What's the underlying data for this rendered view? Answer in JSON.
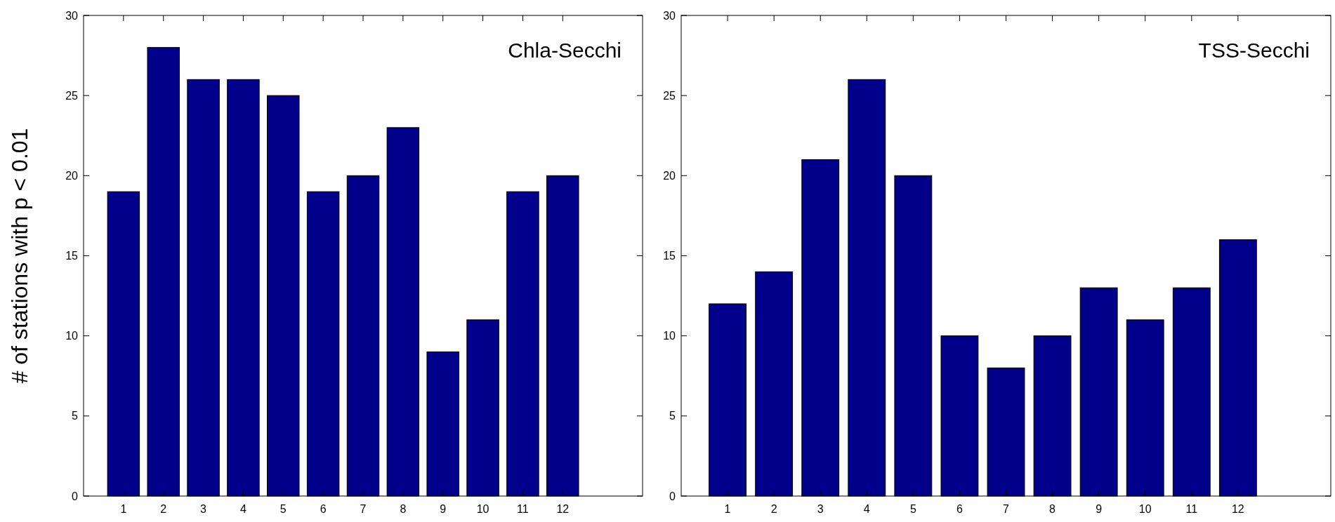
{
  "chart_data": [
    {
      "type": "bar",
      "title": "Chla-Secchi",
      "ylabel": "# of stations with p < 0.01",
      "x": [
        1,
        2,
        3,
        4,
        5,
        6,
        7,
        8,
        9,
        10,
        11,
        12
      ],
      "values": [
        19,
        28,
        26,
        26,
        25,
        19,
        20,
        23,
        9,
        11,
        19,
        20
      ],
      "color": "#00008b",
      "xlim": [
        0,
        14
      ],
      "xticks": [
        1,
        2,
        3,
        4,
        5,
        6,
        7,
        8,
        9,
        10,
        11,
        12
      ],
      "ylim": [
        0,
        30
      ],
      "yticks": [
        0,
        5,
        10,
        15,
        20,
        25,
        30
      ]
    },
    {
      "type": "bar",
      "title": "TSS-Secchi",
      "x": [
        1,
        2,
        3,
        4,
        5,
        6,
        7,
        8,
        9,
        10,
        11,
        12
      ],
      "values": [
        12,
        14,
        21,
        26,
        20,
        10,
        8,
        10,
        13,
        11,
        13,
        16
      ],
      "color": "#00008b",
      "xlim": [
        0,
        14
      ],
      "xticks": [
        1,
        2,
        3,
        4,
        5,
        6,
        7,
        8,
        9,
        10,
        11,
        12
      ],
      "ylim": [
        0,
        30
      ],
      "yticks": [
        0,
        5,
        10,
        15,
        20,
        25,
        30
      ]
    }
  ]
}
